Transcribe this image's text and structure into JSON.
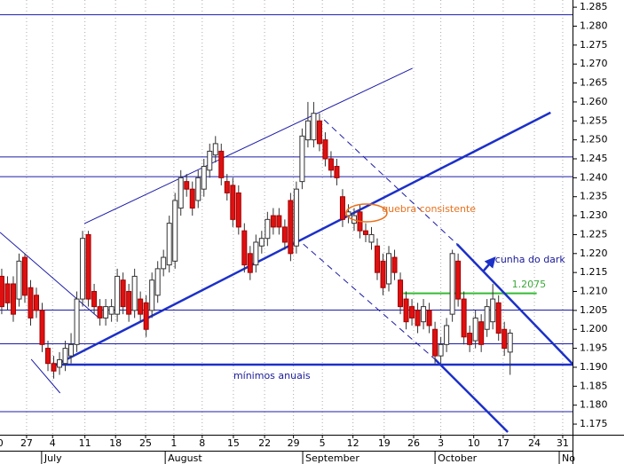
{
  "chart_data": {
    "type": "candlestick",
    "x": [
      1,
      2,
      3,
      4,
      5,
      6,
      7,
      8,
      9,
      10,
      11,
      12,
      13,
      14,
      15,
      16,
      17,
      18,
      19,
      20,
      21,
      22,
      23,
      24,
      25,
      26,
      27,
      28,
      29,
      30,
      31,
      32,
      33,
      34,
      35,
      36,
      37,
      38,
      39,
      40,
      41,
      42,
      43,
      44,
      45,
      46,
      47,
      48,
      49,
      50,
      51,
      52,
      53,
      54,
      55,
      56,
      57,
      58,
      59,
      60,
      61,
      62,
      63,
      64,
      65,
      66,
      67,
      68,
      69,
      70,
      71,
      72,
      73,
      74,
      75,
      76,
      77,
      78,
      79,
      80,
      81,
      82,
      83,
      84,
      85,
      86,
      87,
      88,
      89
    ],
    "open": [
      1.214,
      1.212,
      1.212,
      1.208,
      1.219,
      1.211,
      1.209,
      1.205,
      1.195,
      1.191,
      1.19,
      1.191,
      1.193,
      1.196,
      1.208,
      1.225,
      1.21,
      1.206,
      1.203,
      1.204,
      1.204,
      1.213,
      1.21,
      1.205,
      1.208,
      1.207,
      1.205,
      1.209,
      1.216,
      1.217,
      1.218,
      1.232,
      1.239,
      1.237,
      1.234,
      1.237,
      1.242,
      1.246,
      1.247,
      1.239,
      1.238,
      1.236,
      1.226,
      1.22,
      1.217,
      1.222,
      1.224,
      1.23,
      1.23,
      1.227,
      1.234,
      1.222,
      1.239,
      1.25,
      1.25,
      1.255,
      1.25,
      1.245,
      1.243,
      1.235,
      1.23,
      1.228,
      1.231,
      1.226,
      1.223,
      1.222,
      1.218,
      1.212,
      1.219,
      1.213,
      1.208,
      1.206,
      1.205,
      1.202,
      1.205,
      1.2,
      1.193,
      1.196,
      1.204,
      1.218,
      1.208,
      1.199,
      1.197,
      1.202,
      1.2,
      1.202,
      1.207,
      1.2,
      1.194
    ],
    "high": [
      1.216,
      1.214,
      1.214,
      1.22,
      1.22,
      1.213,
      1.211,
      1.207,
      1.197,
      1.193,
      1.194,
      1.197,
      1.199,
      1.21,
      1.226,
      1.226,
      1.212,
      1.208,
      1.208,
      1.208,
      1.216,
      1.215,
      1.212,
      1.216,
      1.21,
      1.209,
      1.215,
      1.218,
      1.221,
      1.23,
      1.236,
      1.242,
      1.241,
      1.239,
      1.242,
      1.245,
      1.249,
      1.251,
      1.249,
      1.241,
      1.24,
      1.238,
      1.228,
      1.222,
      1.225,
      1.226,
      1.231,
      1.232,
      1.232,
      1.229,
      1.236,
      1.239,
      1.253,
      1.26,
      1.26,
      1.257,
      1.252,
      1.247,
      1.245,
      1.237,
      1.233,
      1.232,
      1.233,
      1.228,
      1.227,
      1.224,
      1.22,
      1.222,
      1.221,
      1.215,
      1.21,
      1.208,
      1.207,
      1.208,
      1.207,
      1.202,
      1.198,
      1.203,
      1.221,
      1.22,
      1.21,
      1.201,
      1.205,
      1.204,
      1.208,
      1.212,
      1.209,
      1.202,
      1.2
    ],
    "low": [
      1.204,
      1.205,
      1.202,
      1.206,
      1.207,
      1.201,
      1.203,
      1.194,
      1.189,
      1.187,
      1.188,
      1.189,
      1.191,
      1.194,
      1.206,
      1.206,
      1.204,
      1.201,
      1.201,
      1.202,
      1.202,
      1.204,
      1.202,
      1.203,
      1.202,
      1.198,
      1.203,
      1.207,
      1.214,
      1.215,
      1.216,
      1.23,
      1.235,
      1.23,
      1.232,
      1.235,
      1.24,
      1.244,
      1.238,
      1.234,
      1.227,
      1.225,
      1.215,
      1.213,
      1.215,
      1.22,
      1.222,
      1.225,
      1.225,
      1.221,
      1.218,
      1.22,
      1.237,
      1.248,
      1.248,
      1.247,
      1.243,
      1.24,
      1.238,
      1.227,
      1.228,
      1.226,
      1.224,
      1.223,
      1.221,
      1.213,
      1.209,
      1.21,
      1.213,
      1.204,
      1.2,
      1.201,
      1.199,
      1.2,
      1.199,
      1.191,
      1.191,
      1.194,
      1.202,
      1.206,
      1.196,
      1.194,
      1.195,
      1.194,
      1.198,
      1.2,
      1.197,
      1.193,
      1.188
    ],
    "close": [
      1.206,
      1.207,
      1.204,
      1.218,
      1.209,
      1.203,
      1.205,
      1.196,
      1.191,
      1.189,
      1.192,
      1.195,
      1.196,
      1.208,
      1.224,
      1.208,
      1.206,
      1.203,
      1.206,
      1.206,
      1.214,
      1.206,
      1.204,
      1.214,
      1.204,
      1.2,
      1.213,
      1.216,
      1.219,
      1.228,
      1.234,
      1.24,
      1.237,
      1.232,
      1.24,
      1.243,
      1.247,
      1.249,
      1.24,
      1.236,
      1.229,
      1.227,
      1.217,
      1.215,
      1.223,
      1.224,
      1.229,
      1.227,
      1.227,
      1.223,
      1.22,
      1.237,
      1.251,
      1.255,
      1.257,
      1.249,
      1.245,
      1.242,
      1.24,
      1.229,
      1.231,
      1.23,
      1.226,
      1.225,
      1.225,
      1.215,
      1.211,
      1.22,
      1.215,
      1.206,
      1.202,
      1.203,
      1.201,
      1.206,
      1.201,
      1.193,
      1.196,
      1.201,
      1.22,
      1.208,
      1.198,
      1.196,
      1.203,
      1.196,
      1.206,
      1.208,
      1.199,
      1.195,
      1.199
    ],
    "up_color": "#ffffff",
    "down_color": "#e01010",
    "xlim": [
      0.7,
      99.8
    ],
    "xticks": [
      {
        "value": 0.2,
        "label": "20"
      },
      {
        "value": 5.3,
        "label": "27"
      },
      {
        "value": 9.8,
        "label": "4"
      },
      {
        "value": 15.4,
        "label": "11"
      },
      {
        "value": 20.7,
        "label": "18"
      },
      {
        "value": 25.9,
        "label": "25"
      },
      {
        "value": 30.8,
        "label": "1"
      },
      {
        "value": 35.7,
        "label": "8"
      },
      {
        "value": 41.1,
        "label": "15"
      },
      {
        "value": 46.5,
        "label": "22"
      },
      {
        "value": 51.5,
        "label": "29"
      },
      {
        "value": 56.5,
        "label": "5"
      },
      {
        "value": 61.8,
        "label": "12"
      },
      {
        "value": 67.2,
        "label": "19"
      },
      {
        "value": 72.3,
        "label": "26"
      },
      {
        "value": 77.0,
        "label": "3"
      },
      {
        "value": 82.7,
        "label": "10"
      },
      {
        "value": 87.8,
        "label": "17"
      },
      {
        "value": 93.2,
        "label": "24"
      },
      {
        "value": 98.1,
        "label": "31"
      }
    ],
    "months": [
      {
        "value": 7.9,
        "label": "July"
      },
      {
        "value": 29.3,
        "label": "August"
      },
      {
        "value": 53.1,
        "label": "September"
      },
      {
        "value": 76.0,
        "label": "October"
      },
      {
        "value": 97.5,
        "label": "No"
      }
    ],
    "ylim": [
      1.1722,
      1.2869
    ],
    "yticks": [
      {
        "value": 1.175,
        "label": "1.175"
      },
      {
        "value": 1.18,
        "label": "1.180"
      },
      {
        "value": 1.185,
        "label": "1.185"
      },
      {
        "value": 1.19,
        "label": "1.190"
      },
      {
        "value": 1.195,
        "label": "1.195"
      },
      {
        "value": 1.2,
        "label": "1.200"
      },
      {
        "value": 1.205,
        "label": "1.205"
      },
      {
        "value": 1.21,
        "label": "1.210"
      },
      {
        "value": 1.215,
        "label": "1.215"
      },
      {
        "value": 1.22,
        "label": "1.220"
      },
      {
        "value": 1.225,
        "label": "1.225"
      },
      {
        "value": 1.23,
        "label": "1.230"
      },
      {
        "value": 1.235,
        "label": "1.235"
      },
      {
        "value": 1.24,
        "label": "1.240"
      },
      {
        "value": 1.245,
        "label": "1.245"
      },
      {
        "value": 1.25,
        "label": "1.250"
      },
      {
        "value": 1.255,
        "label": "1.255"
      },
      {
        "value": 1.26,
        "label": "1.260"
      },
      {
        "value": 1.265,
        "label": "1.265"
      },
      {
        "value": 1.27,
        "label": "1.270"
      },
      {
        "value": 1.275,
        "label": "1.275"
      },
      {
        "value": 1.28,
        "label": "1.280"
      },
      {
        "value": 1.285,
        "label": "1.285"
      }
    ],
    "grid": "vertical-dotted",
    "levels": [
      {
        "value": 1.283,
        "color": "#1c1ca8",
        "width": 1
      },
      {
        "value": 1.2455,
        "color": "#1c1ca8",
        "width": 1
      },
      {
        "value": 1.2403,
        "color": "#1c1ca8",
        "width": 1
      },
      {
        "value": 1.2051,
        "color": "#1c1ca8",
        "width": 1
      },
      {
        "value": 1.1962,
        "color": "#1c1ca8",
        "width": 1
      },
      {
        "value": 1.1907,
        "color": "#1c30c8",
        "width": 2.5,
        "from": 10.2
      },
      {
        "value": 1.1783,
        "color": "#1c1ca8",
        "width": 1
      },
      {
        "value": 1.2095,
        "color": "#33bb33",
        "width": 2,
        "from": 70.5,
        "to": 93.6
      }
    ],
    "trendlines": [
      {
        "points": [
          [
            10.2,
            1.1905
          ],
          [
            96.0,
            1.2572
          ]
        ],
        "color": "#1c30c8",
        "width": 2.5
      },
      {
        "points": [
          [
            15.3,
            1.2279
          ],
          [
            72.1,
            1.2689
          ]
        ],
        "color": "#1c1ca8",
        "width": 1
      },
      {
        "points": [
          [
            56.8,
            1.2553
          ],
          [
            79.8,
            1.2225
          ]
        ],
        "color": "#1c1ca8",
        "width": 1,
        "dashed": true
      },
      {
        "points": [
          [
            79.8,
            1.2225
          ],
          [
            99.8,
            1.1909
          ]
        ],
        "color": "#1c30c8",
        "width": 2.5
      },
      {
        "points": [
          [
            53.2,
            1.2225
          ],
          [
            76.0,
            1.1921
          ]
        ],
        "color": "#1c1ca8",
        "width": 1,
        "dashed": true
      },
      {
        "points": [
          [
            76.0,
            1.1921
          ],
          [
            88.6,
            1.1729
          ]
        ],
        "color": "#1c30c8",
        "width": 2.5
      },
      {
        "points": [
          [
            0.7,
            1.2256
          ],
          [
            17.6,
            1.2033
          ]
        ],
        "color": "#1c1ca8",
        "width": 1
      },
      {
        "points": [
          [
            6.1,
            1.1921
          ],
          [
            11.1,
            1.1832
          ]
        ],
        "color": "#1c1ca8",
        "width": 1
      }
    ],
    "annotations": [
      {
        "text": "quebra consistente",
        "x": 66.8,
        "y": 1.2317,
        "color": "#e8701c"
      },
      {
        "text": "cunha do dark",
        "x": 86.4,
        "y": 1.2183,
        "color": "#1a1a9a"
      },
      {
        "text": "1.2075",
        "x": 89.3,
        "y": 1.2118,
        "color": "#3aa83a"
      },
      {
        "text": "mínimos anuais",
        "x": 41.1,
        "y": 1.1877,
        "color": "#1a1a9a"
      }
    ]
  }
}
